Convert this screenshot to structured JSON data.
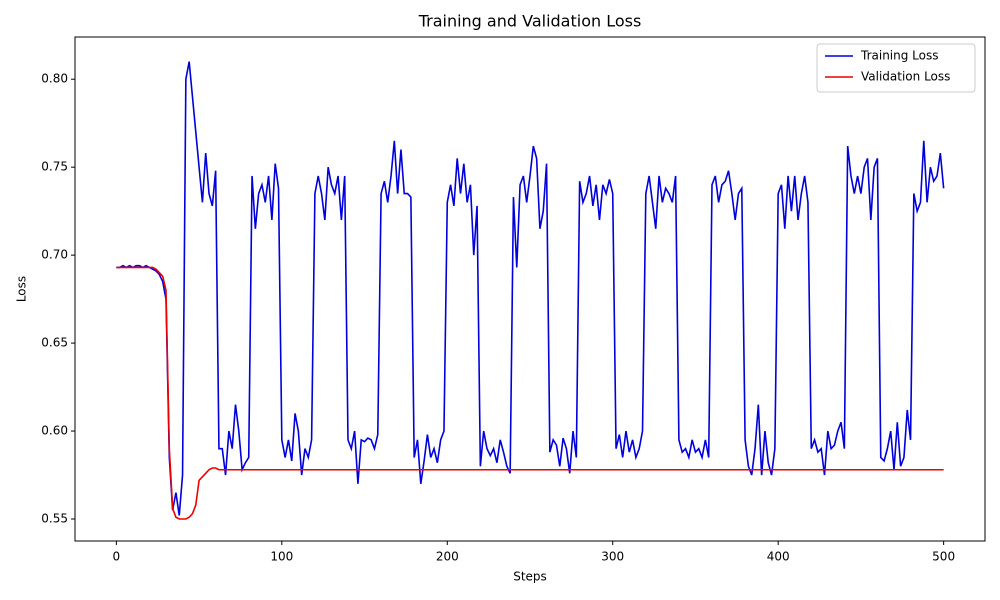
{
  "chart_data": {
    "type": "line",
    "title": "Training and Validation Loss",
    "x_label": "Steps",
    "y_label": "Loss",
    "xlim": [
      -25,
      525
    ],
    "ylim": [
      0.5375,
      0.824
    ],
    "xticks": [
      0,
      100,
      200,
      300,
      400,
      500
    ],
    "yticks": [
      {
        "value": 0.55,
        "label": "0.55"
      },
      {
        "value": 0.6,
        "label": "0.60"
      },
      {
        "value": 0.65,
        "label": "0.65"
      },
      {
        "value": 0.7,
        "label": "0.70"
      },
      {
        "value": 0.75,
        "label": "0.75"
      },
      {
        "value": 0.8,
        "label": "0.80"
      }
    ],
    "legend": "upper right",
    "series": [
      {
        "name": "Training Loss",
        "color": "#0000dd",
        "x": [
          0,
          2,
          4,
          6,
          8,
          10,
          12,
          14,
          16,
          18,
          20,
          22,
          24,
          26,
          28,
          30,
          32,
          34,
          36,
          38,
          40,
          42,
          44,
          46,
          48,
          50,
          52,
          54,
          56,
          58,
          60,
          62,
          64,
          66,
          68,
          70,
          72,
          74,
          76,
          78,
          80,
          82,
          84,
          86,
          88,
          90,
          92,
          94,
          96,
          98,
          100,
          102,
          104,
          106,
          108,
          110,
          112,
          114,
          116,
          118,
          120,
          122,
          124,
          126,
          128,
          130,
          132,
          134,
          136,
          138,
          140,
          142,
          144,
          146,
          148,
          150,
          152,
          154,
          156,
          158,
          160,
          162,
          164,
          166,
          168,
          170,
          172,
          174,
          176,
          178,
          180,
          182,
          184,
          186,
          188,
          190,
          192,
          194,
          196,
          198,
          200,
          202,
          204,
          206,
          208,
          210,
          212,
          214,
          216,
          218,
          220,
          222,
          224,
          226,
          228,
          230,
          232,
          234,
          236,
          238,
          240,
          242,
          244,
          246,
          248,
          250,
          252,
          254,
          256,
          258,
          260,
          262,
          264,
          266,
          268,
          270,
          272,
          274,
          276,
          278,
          280,
          282,
          284,
          286,
          288,
          290,
          292,
          294,
          296,
          298,
          300,
          302,
          304,
          306,
          308,
          310,
          312,
          314,
          316,
          318,
          320,
          322,
          324,
          326,
          328,
          330,
          332,
          334,
          336,
          338,
          340,
          342,
          344,
          346,
          348,
          350,
          352,
          354,
          356,
          358,
          360,
          362,
          364,
          366,
          368,
          370,
          372,
          374,
          376,
          378,
          380,
          382,
          384,
          386,
          388,
          390,
          392,
          394,
          396,
          398,
          400,
          402,
          404,
          406,
          408,
          410,
          412,
          414,
          416,
          418,
          420,
          422,
          424,
          426,
          428,
          430,
          432,
          434,
          436,
          438,
          440,
          442,
          444,
          446,
          448,
          450,
          452,
          454,
          456,
          458,
          460,
          462,
          464,
          466,
          468,
          470,
          472,
          474,
          476,
          478,
          480,
          482,
          484,
          486,
          488,
          490,
          492,
          494,
          496,
          498,
          500
        ],
        "values": [
          0.693,
          0.693,
          0.694,
          0.693,
          0.694,
          0.693,
          0.694,
          0.694,
          0.693,
          0.694,
          0.693,
          0.692,
          0.691,
          0.689,
          0.685,
          0.675,
          0.585,
          0.555,
          0.565,
          0.552,
          0.575,
          0.8,
          0.81,
          0.79,
          0.77,
          0.75,
          0.73,
          0.758,
          0.735,
          0.728,
          0.748,
          0.59,
          0.59,
          0.575,
          0.6,
          0.59,
          0.615,
          0.6,
          0.578,
          0.582,
          0.585,
          0.745,
          0.715,
          0.735,
          0.74,
          0.73,
          0.745,
          0.72,
          0.752,
          0.738,
          0.595,
          0.585,
          0.595,
          0.583,
          0.61,
          0.6,
          0.575,
          0.59,
          0.585,
          0.595,
          0.735,
          0.745,
          0.735,
          0.72,
          0.75,
          0.74,
          0.735,
          0.745,
          0.72,
          0.745,
          0.595,
          0.59,
          0.6,
          0.57,
          0.595,
          0.594,
          0.596,
          0.595,
          0.59,
          0.598,
          0.735,
          0.742,
          0.73,
          0.745,
          0.765,
          0.735,
          0.76,
          0.735,
          0.735,
          0.733,
          0.585,
          0.595,
          0.57,
          0.583,
          0.598,
          0.585,
          0.59,
          0.582,
          0.595,
          0.6,
          0.73,
          0.74,
          0.728,
          0.755,
          0.735,
          0.752,
          0.73,
          0.74,
          0.7,
          0.728,
          0.58,
          0.6,
          0.59,
          0.586,
          0.59,
          0.582,
          0.595,
          0.588,
          0.58,
          0.576,
          0.733,
          0.693,
          0.74,
          0.745,
          0.73,
          0.745,
          0.762,
          0.755,
          0.715,
          0.725,
          0.752,
          0.588,
          0.595,
          0.592,
          0.58,
          0.596,
          0.59,
          0.576,
          0.6,
          0.585,
          0.742,
          0.73,
          0.735,
          0.745,
          0.728,
          0.74,
          0.72,
          0.74,
          0.735,
          0.743,
          0.735,
          0.59,
          0.598,
          0.585,
          0.6,
          0.588,
          0.595,
          0.585,
          0.59,
          0.6,
          0.735,
          0.745,
          0.73,
          0.715,
          0.745,
          0.73,
          0.738,
          0.735,
          0.73,
          0.745,
          0.595,
          0.588,
          0.59,
          0.585,
          0.595,
          0.588,
          0.59,
          0.585,
          0.595,
          0.585,
          0.74,
          0.745,
          0.73,
          0.74,
          0.742,
          0.748,
          0.735,
          0.72,
          0.735,
          0.738,
          0.595,
          0.58,
          0.575,
          0.59,
          0.615,
          0.575,
          0.6,
          0.582,
          0.575,
          0.59,
          0.735,
          0.74,
          0.715,
          0.745,
          0.725,
          0.745,
          0.72,
          0.735,
          0.745,
          0.73,
          0.59,
          0.595,
          0.588,
          0.59,
          0.575,
          0.6,
          0.59,
          0.592,
          0.6,
          0.605,
          0.59,
          0.762,
          0.745,
          0.735,
          0.745,
          0.735,
          0.75,
          0.755,
          0.72,
          0.75,
          0.755,
          0.585,
          0.583,
          0.59,
          0.6,
          0.578,
          0.605,
          0.58,
          0.585,
          0.612,
          0.595,
          0.735,
          0.725,
          0.73,
          0.765,
          0.73,
          0.75,
          0.742,
          0.745,
          0.758,
          0.738
        ]
      },
      {
        "name": "Validation Loss",
        "color": "#ee0000",
        "x": [
          0,
          10,
          20,
          22,
          24,
          26,
          28,
          30,
          32,
          34,
          36,
          38,
          40,
          42,
          44,
          46,
          48,
          50,
          52,
          54,
          56,
          58,
          60,
          62,
          500
        ],
        "values": [
          0.693,
          0.693,
          0.693,
          0.693,
          0.692,
          0.69,
          0.688,
          0.68,
          0.59,
          0.556,
          0.551,
          0.55,
          0.55,
          0.55,
          0.551,
          0.553,
          0.558,
          0.572,
          0.574,
          0.576,
          0.578,
          0.579,
          0.579,
          0.578,
          0.578
        ]
      }
    ]
  }
}
